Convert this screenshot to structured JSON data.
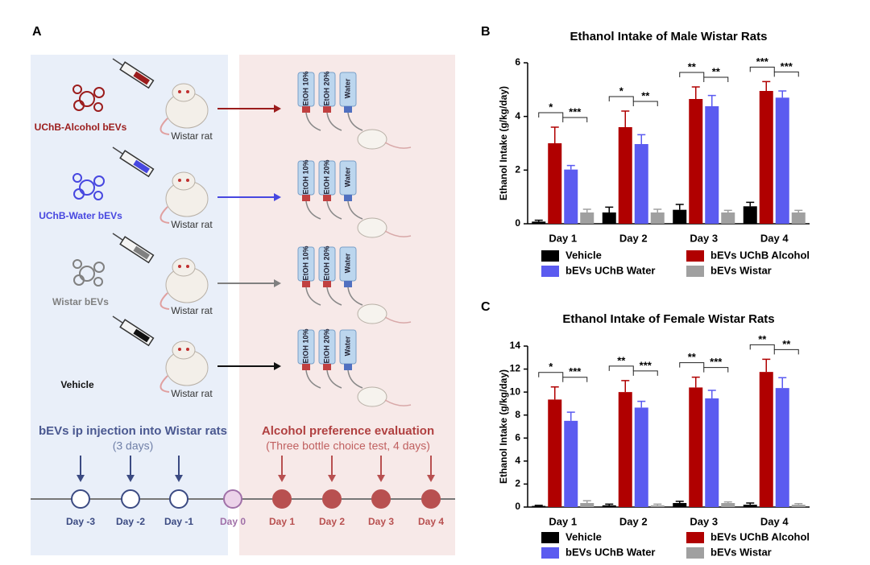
{
  "diagram": {
    "panel_label": "A",
    "groups": [
      {
        "label": "UChB-Alcohol bEVs",
        "color": "#9b1c1c"
      },
      {
        "label": "UChB-Water bEVs",
        "color": "#4747e0"
      },
      {
        "label": "Wistar bEVs",
        "color": "#808080"
      },
      {
        "label": "Vehicle",
        "color": "#111111"
      }
    ],
    "animal_label": "Wistar rat",
    "bottles": [
      "EtOH 10%",
      "EtOH 20%",
      "Water"
    ],
    "injection_title": "bEVs ip injection into Wistar rats",
    "injection_subtitle": "(3 days)",
    "evaluation_title": "Alcohol preference evaluation",
    "evaluation_subtitle": "(Three bottle choice test, 4 days)",
    "timeline": [
      "Day -3",
      "Day -2",
      "Day -1",
      "Day 0",
      "Day 1",
      "Day 2",
      "Day 3",
      "Day 4"
    ]
  },
  "chart_data": [
    {
      "type": "bar",
      "panel_label": "B",
      "title": "Ethanol Intake of Male Wistar Rats",
      "y_label": "Ethanol Intake (g/kg/day)",
      "categories": [
        "Day 1",
        "Day 2",
        "Day 3",
        "Day 4"
      ],
      "series": [
        {
          "name": "Vehicle",
          "color": "#000000",
          "values": [
            0.08,
            0.42,
            0.52,
            0.65
          ],
          "errors": [
            0.05,
            0.2,
            0.2,
            0.15
          ]
        },
        {
          "name": "bEVs UChB Alcohol",
          "color": "#b00000",
          "values": [
            3.0,
            3.6,
            4.65,
            4.95
          ],
          "errors": [
            0.6,
            0.6,
            0.45,
            0.35
          ]
        },
        {
          "name": "bEVs UChB Water",
          "color": "#5b5bf0",
          "values": [
            2.02,
            2.97,
            4.38,
            4.7
          ],
          "errors": [
            0.15,
            0.35,
            0.4,
            0.25
          ]
        },
        {
          "name": "bEVs Wistar",
          "color": "#a0a0a0",
          "values": [
            0.42,
            0.42,
            0.42,
            0.42
          ],
          "errors": [
            0.12,
            0.12,
            0.08,
            0.08
          ]
        }
      ],
      "annotations": [
        [
          "*",
          "***"
        ],
        [
          "*",
          "**"
        ],
        [
          "**",
          "**"
        ],
        [
          "***",
          "***"
        ]
      ],
      "ylim": [
        0,
        6
      ],
      "yticks": [
        0,
        2,
        4,
        6
      ]
    },
    {
      "type": "bar",
      "panel_label": "C",
      "title": "Ethanol Intake of Female Wistar Rats",
      "y_label": "Ethanol Intake (g/kg/day)",
      "categories": [
        "Day 1",
        "Day 2",
        "Day 3",
        "Day 4"
      ],
      "series": [
        {
          "name": "Vehicle",
          "color": "#000000",
          "values": [
            0.1,
            0.15,
            0.35,
            0.2
          ],
          "errors": [
            0.05,
            0.1,
            0.15,
            0.15
          ]
        },
        {
          "name": "bEVs UChB Alcohol",
          "color": "#b00000",
          "values": [
            9.35,
            10.0,
            10.4,
            11.75
          ],
          "errors": [
            1.1,
            1.0,
            0.9,
            1.1
          ]
        },
        {
          "name": "bEVs UChB Water",
          "color": "#5b5bf0",
          "values": [
            7.5,
            8.65,
            9.45,
            10.35
          ],
          "errors": [
            0.75,
            0.55,
            0.7,
            0.9
          ]
        },
        {
          "name": "bEVs Wistar",
          "color": "#a0a0a0",
          "values": [
            0.35,
            0.15,
            0.35,
            0.2
          ],
          "errors": [
            0.2,
            0.1,
            0.1,
            0.1
          ]
        }
      ],
      "annotations": [
        [
          "*",
          "***"
        ],
        [
          "**",
          "***"
        ],
        [
          "**",
          "***"
        ],
        [
          "**",
          "**"
        ]
      ],
      "ylim": [
        0,
        14
      ],
      "yticks": [
        0,
        2,
        4,
        6,
        8,
        10,
        12,
        14
      ]
    }
  ]
}
